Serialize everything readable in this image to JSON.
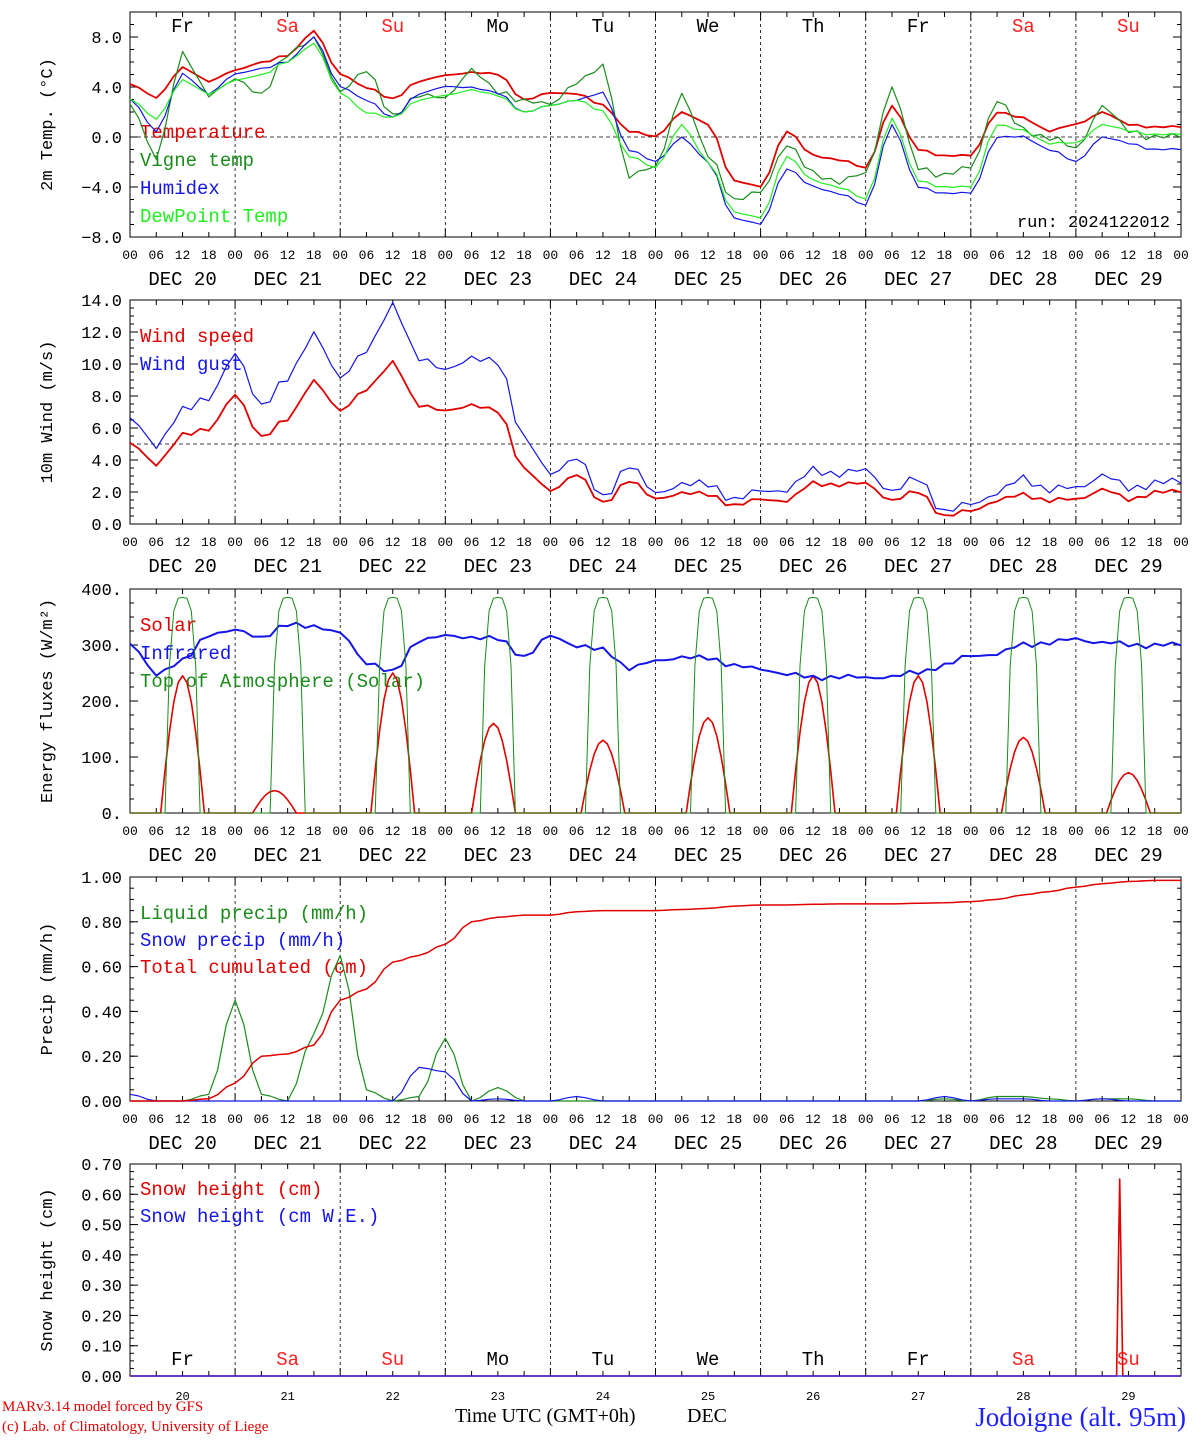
{
  "colors": {
    "red": "#e00000",
    "green": "#1a8c1a",
    "blue": "#1515e8",
    "lightgreen": "#22ee22",
    "weekend": "#ff2020",
    "weekday": "#000000"
  },
  "days": [
    {
      "dow": "Fr",
      "date": "DEC 20",
      "num": "20",
      "weekend": false
    },
    {
      "dow": "Sa",
      "date": "DEC 21",
      "num": "21",
      "weekend": true
    },
    {
      "dow": "Su",
      "date": "DEC 22",
      "num": "22",
      "weekend": true
    },
    {
      "dow": "Mo",
      "date": "DEC 23",
      "num": "23",
      "weekend": false
    },
    {
      "dow": "Tu",
      "date": "DEC 24",
      "num": "24",
      "weekend": false
    },
    {
      "dow": "We",
      "date": "DEC 25",
      "num": "25",
      "weekend": false
    },
    {
      "dow": "Th",
      "date": "DEC 26",
      "num": "26",
      "weekend": false
    },
    {
      "dow": "Fr",
      "date": "DEC 27",
      "num": "27",
      "weekend": false
    },
    {
      "dow": "Sa",
      "date": "DEC 28",
      "num": "28",
      "weekend": true
    },
    {
      "dow": "Su",
      "date": "DEC 29",
      "num": "29",
      "weekend": true
    }
  ],
  "hour_ticks": [
    "00",
    "06",
    "12",
    "18"
  ],
  "hour_end": "00",
  "footer": {
    "credit1": "MARv3.14 model forced by GFS",
    "credit2": "(c) Lab. of Climatology, University of Liege",
    "station": "Jodoigne (alt. 95m)",
    "xtitle": "Time UTC (GMT+0h)",
    "xmonth": "DEC"
  },
  "chart_data": [
    {
      "type": "line",
      "ylabel": "2m Temp. (°C)",
      "ylim": [
        -8,
        10
      ],
      "yticks": [
        "8.0",
        "4.0",
        "0.0",
        "−4.0",
        "−8.0"
      ],
      "ytick_values": [
        8,
        4,
        0,
        -4,
        -8
      ],
      "ref_line": 0,
      "annotation": "run: 2024122012",
      "x_hours": [
        0,
        6,
        12,
        18,
        24,
        30,
        36,
        42,
        48,
        54,
        60,
        66,
        72,
        78,
        84,
        90,
        96,
        102,
        108,
        114,
        120,
        126,
        132,
        138,
        144,
        150,
        156,
        162,
        168,
        174,
        180,
        186,
        192,
        198,
        204,
        210,
        216,
        222,
        228,
        234
      ],
      "series": [
        {
          "name": "Temperature",
          "color": "red",
          "values": [
            4.2,
            3.2,
            5.5,
            4.5,
            5.3,
            6.0,
            6.5,
            8.5,
            5.0,
            4.0,
            3.0,
            4.5,
            4.9,
            5.2,
            5.0,
            3.0,
            3.5,
            3.5,
            2.5,
            0.5,
            0.0,
            2.0,
            1.0,
            -3.5,
            -4.0,
            0.5,
            -1.5,
            -1.8,
            -2.5,
            2.5,
            -1.0,
            -1.5,
            -1.5,
            2.0,
            1.5,
            0.5,
            1.0,
            2.0,
            1.0,
            0.8
          ]
        },
        {
          "name": "Vigne temp",
          "color": "green",
          "values": [
            2.5,
            -1.5,
            6.5,
            3.5,
            4.5,
            3.5,
            6.5,
            8.0,
            3.5,
            5.5,
            1.5,
            3.5,
            3.0,
            5.5,
            3.5,
            3.0,
            2.5,
            4.5,
            5.5,
            -3.0,
            -2.5,
            3.5,
            -1.5,
            -5.0,
            -4.5,
            -0.5,
            -3.0,
            -3.5,
            -3.0,
            4.0,
            -2.5,
            -3.0,
            -2.5,
            3.0,
            0.5,
            0.0,
            -1.0,
            2.5,
            0.5,
            0.0
          ]
        },
        {
          "name": "Humidex",
          "color": "blue",
          "values": [
            3.0,
            0.5,
            5.0,
            3.5,
            5.0,
            5.5,
            6.0,
            8.0,
            4.0,
            3.0,
            1.5,
            3.5,
            4.0,
            4.0,
            3.5,
            2.0,
            2.5,
            3.0,
            3.5,
            -1.0,
            -2.0,
            0.0,
            -2.0,
            -6.5,
            -7.0,
            -2.5,
            -4.0,
            -4.5,
            -5.5,
            1.0,
            -4.0,
            -4.5,
            -4.5,
            0.0,
            0.0,
            -1.0,
            -2.0,
            0.0,
            -0.5,
            -1.0
          ]
        },
        {
          "name": "DewPoint Temp",
          "color": "lightgreen",
          "values": [
            3.0,
            1.5,
            4.5,
            3.5,
            4.5,
            5.0,
            6.0,
            7.5,
            3.5,
            2.0,
            1.5,
            3.0,
            3.3,
            3.8,
            3.3,
            2.0,
            2.5,
            3.0,
            2.0,
            -1.5,
            -2.5,
            1.0,
            -2.0,
            -6.0,
            -6.5,
            -1.5,
            -3.5,
            -4.0,
            -5.0,
            1.5,
            -3.5,
            -4.0,
            -4.0,
            1.0,
            0.5,
            -0.5,
            -0.5,
            1.0,
            0.5,
            0.2
          ]
        }
      ]
    },
    {
      "type": "line",
      "ylabel": "10m Wind (m/s)",
      "ylim": [
        0,
        14
      ],
      "yticks": [
        "14.0",
        "12.0",
        "10.0",
        "8.0",
        "6.0",
        "4.0",
        "2.0",
        "0.0"
      ],
      "ytick_values": [
        14,
        12,
        10,
        8,
        6,
        4,
        2,
        0
      ],
      "ref_line": 5,
      "x_hours": [
        0,
        6,
        12,
        18,
        24,
        30,
        36,
        42,
        48,
        54,
        60,
        66,
        72,
        78,
        84,
        90,
        96,
        102,
        108,
        114,
        120,
        126,
        132,
        138,
        144,
        150,
        156,
        162,
        168,
        174,
        180,
        186,
        192,
        198,
        204,
        210,
        216,
        222,
        228,
        234
      ],
      "series": [
        {
          "name": "Wind speed",
          "color": "red",
          "values": [
            5.0,
            3.8,
            5.5,
            6.0,
            8.0,
            5.5,
            6.5,
            9.0,
            7.0,
            8.5,
            10.0,
            7.5,
            7.0,
            7.5,
            7.0,
            3.5,
            2.0,
            3.2,
            1.2,
            2.8,
            1.5,
            2.0,
            1.8,
            1.2,
            1.5,
            1.5,
            2.5,
            2.5,
            2.5,
            1.5,
            2.0,
            0.5,
            0.8,
            1.5,
            1.8,
            1.5,
            1.5,
            2.2,
            1.5,
            2.0
          ]
        },
        {
          "name": "Wind gust",
          "color": "blue",
          "values": [
            6.5,
            5.0,
            7.0,
            8.0,
            10.5,
            7.5,
            9.0,
            12.0,
            9.0,
            11.0,
            13.5,
            10.5,
            9.5,
            10.5,
            10.0,
            5.5,
            3.0,
            4.3,
            1.5,
            3.8,
            1.8,
            2.6,
            2.4,
            1.6,
            2.0,
            2.2,
            3.3,
            3.2,
            3.3,
            2.1,
            2.8,
            0.8,
            1.2,
            2.0,
            2.8,
            2.2,
            2.2,
            3.1,
            2.2,
            2.6
          ]
        }
      ]
    },
    {
      "type": "line",
      "ylabel": "Energy fluxes (W/m²)",
      "ylim": [
        0,
        400
      ],
      "yticks": [
        "400.",
        "300.",
        "200.",
        "100.",
        "0."
      ],
      "ytick_values": [
        400,
        300,
        200,
        100,
        0
      ],
      "infrared_x_hours": [
        0,
        6,
        12,
        18,
        24,
        30,
        36,
        42,
        48,
        54,
        60,
        66,
        72,
        78,
        84,
        90,
        96,
        102,
        108,
        114,
        120,
        126,
        132,
        138,
        144,
        150,
        156,
        162,
        168,
        174,
        180,
        186,
        192,
        198,
        204,
        210,
        216,
        222,
        228,
        234
      ],
      "series": [
        {
          "name": "Solar",
          "color": "red",
          "peaks": [
            245,
            40,
            250,
            160,
            130,
            170,
            245,
            245,
            135,
            72
          ],
          "peak_hours": [
            12,
            33,
            60,
            83,
            108,
            132,
            156,
            180,
            204,
            228
          ]
        },
        {
          "name": "Infrared",
          "color": "blue",
          "values": [
            300,
            250,
            270,
            320,
            325,
            315,
            335,
            335,
            320,
            270,
            250,
            310,
            315,
            315,
            310,
            280,
            315,
            300,
            290,
            260,
            270,
            280,
            275,
            265,
            255,
            250,
            240,
            245,
            240,
            245,
            250,
            265,
            280,
            285,
            300,
            305,
            310,
            305,
            300,
            300
          ]
        },
        {
          "name": "Top of Atmosphere (Solar)",
          "color": "green",
          "peak": 385
        }
      ]
    },
    {
      "type": "line",
      "ylabel": "Precip (mm/h)",
      "ylim": [
        0,
        1.0
      ],
      "yticks": [
        "1.00",
        "0.80",
        "0.60",
        "0.40",
        "0.20",
        "0.00"
      ],
      "ytick_values": [
        1.0,
        0.8,
        0.6,
        0.4,
        0.2,
        0.0
      ],
      "x_hours": [
        0,
        6,
        12,
        18,
        24,
        30,
        36,
        42,
        48,
        54,
        60,
        66,
        72,
        78,
        84,
        90,
        96,
        102,
        108,
        114,
        120,
        126,
        132,
        138,
        144,
        150,
        156,
        162,
        168,
        174,
        180,
        186,
        192,
        198,
        204,
        210,
        216,
        222,
        228,
        234
      ],
      "series": [
        {
          "name": "Liquid precip (mm/h)",
          "color": "green",
          "values": [
            0.0,
            0.0,
            0.0,
            0.03,
            0.45,
            0.03,
            0.0,
            0.3,
            0.65,
            0.05,
            0.0,
            0.02,
            0.28,
            0.0,
            0.06,
            0.0,
            0.0,
            0.0,
            0.0,
            0.0,
            0.0,
            0.0,
            0.0,
            0.0,
            0.0,
            0.0,
            0.0,
            0.0,
            0.0,
            0.0,
            0.0,
            0.01,
            0.0,
            0.02,
            0.02,
            0.01,
            0.0,
            0.01,
            0.01,
            0.0
          ]
        },
        {
          "name": "Snow precip (mm/h)",
          "color": "blue",
          "values": [
            0.03,
            0.0,
            0.0,
            0.0,
            0.0,
            0.0,
            0.0,
            0.0,
            0.0,
            0.0,
            0.0,
            0.15,
            0.13,
            0.0,
            0.01,
            0.0,
            0.0,
            0.02,
            0.0,
            0.0,
            0.0,
            0.0,
            0.0,
            0.0,
            0.0,
            0.0,
            0.0,
            0.0,
            0.0,
            0.0,
            0.0,
            0.02,
            0.0,
            0.01,
            0.01,
            0.0,
            0.0,
            0.01,
            0.0,
            0.0
          ]
        },
        {
          "name": "Total cumulated (cm)",
          "color": "red",
          "values": [
            0.0,
            0.0,
            0.0,
            0.01,
            0.08,
            0.2,
            0.21,
            0.25,
            0.45,
            0.5,
            0.62,
            0.65,
            0.7,
            0.8,
            0.82,
            0.83,
            0.83,
            0.845,
            0.85,
            0.85,
            0.85,
            0.855,
            0.86,
            0.87,
            0.875,
            0.875,
            0.878,
            0.88,
            0.88,
            0.88,
            0.883,
            0.885,
            0.89,
            0.9,
            0.92,
            0.935,
            0.955,
            0.97,
            0.98,
            0.985
          ]
        }
      ]
    },
    {
      "type": "line",
      "ylabel": "Snow height (cm)",
      "ylim": [
        0,
        0.7
      ],
      "yticks": [
        "0.70",
        "0.60",
        "0.50",
        "0.40",
        "0.30",
        "0.20",
        "0.10",
        "0.00"
      ],
      "ytick_values": [
        0.7,
        0.6,
        0.5,
        0.4,
        0.3,
        0.2,
        0.1,
        0.0
      ],
      "series": [
        {
          "name": "Snow height (cm)",
          "color": "red",
          "spike_hour": 226,
          "spike_value": 0.65
        },
        {
          "name": "Snow height (cm W.E.)",
          "color": "blue",
          "values": [
            0
          ]
        }
      ]
    }
  ]
}
